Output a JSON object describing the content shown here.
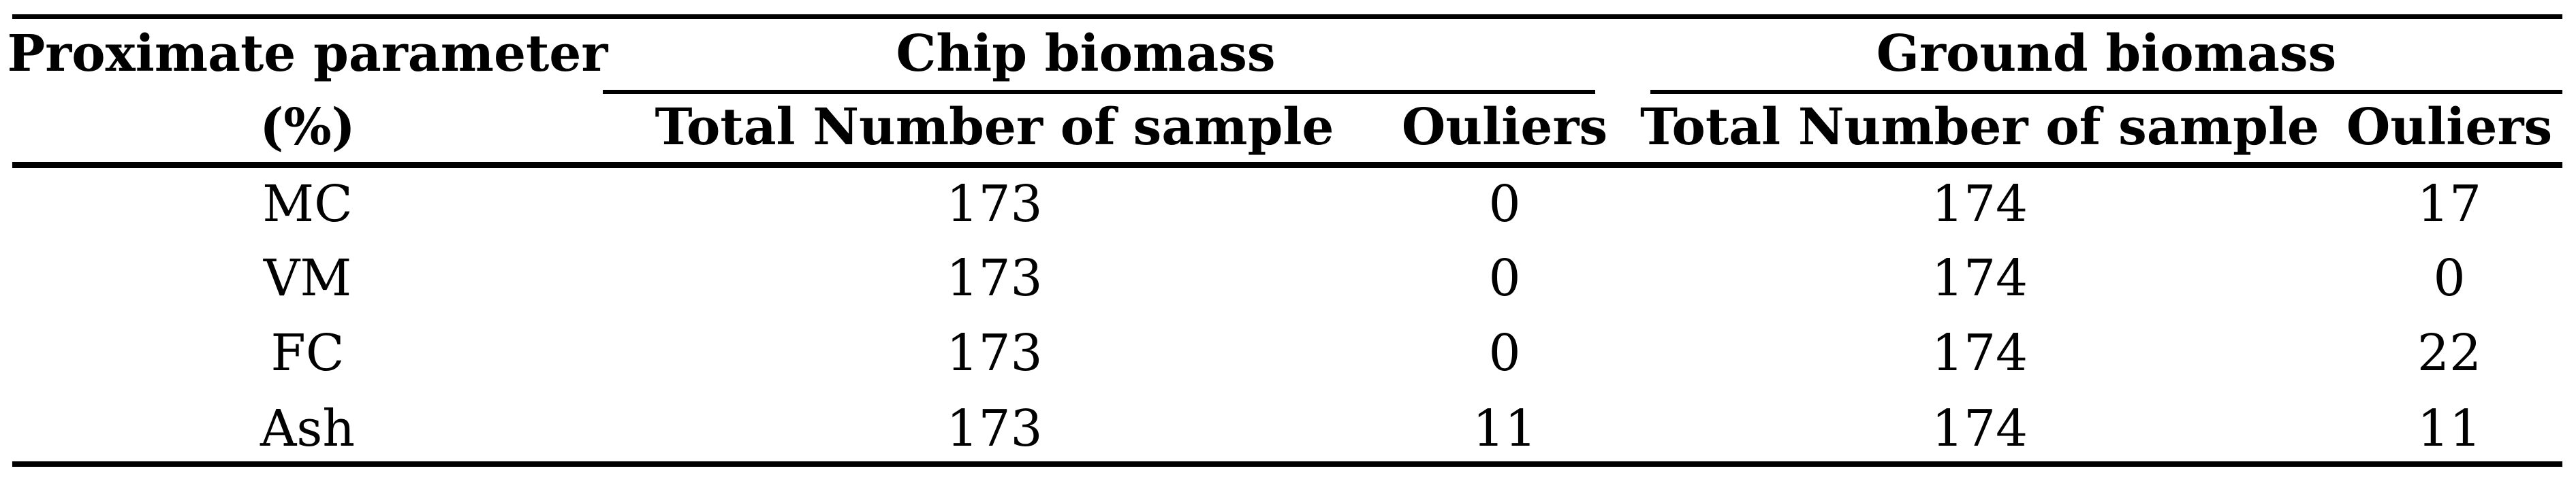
{
  "table": {
    "corner_header": {
      "line1": "Proximate parameter",
      "line2": "(%)"
    },
    "groups": {
      "chip": {
        "label": "Chip biomass",
        "sub_total": "Total Number of sample",
        "sub_outliers": "Ouliers"
      },
      "ground": {
        "label": "Ground biomass",
        "sub_total": "Total Number of sample",
        "sub_outliers": "Ouliers"
      }
    },
    "rows": [
      {
        "param": "MC",
        "chip_total": "173",
        "chip_outliers": "0",
        "ground_total": "174",
        "ground_outliers": "17"
      },
      {
        "param": "VM",
        "chip_total": "173",
        "chip_outliers": "0",
        "ground_total": "174",
        "ground_outliers": "0"
      },
      {
        "param": "FC",
        "chip_total": "173",
        "chip_outliers": "0",
        "ground_total": "174",
        "ground_outliers": "22"
      },
      {
        "param": "Ash",
        "chip_total": "173",
        "chip_outliers": "11",
        "ground_total": "174",
        "ground_outliers": "11"
      }
    ],
    "colors": {
      "text": "#000000",
      "rule": "#000000",
      "background": "#ffffff"
    }
  },
  "chart_data": {
    "type": "table",
    "title": "",
    "columns": [
      "Proximate parameter (%)",
      "Chip biomass - Total Number of sample",
      "Chip biomass - Ouliers",
      "Ground biomass - Total Number of sample",
      "Ground biomass - Ouliers"
    ],
    "rows": [
      [
        "MC",
        173,
        0,
        174,
        17
      ],
      [
        "VM",
        173,
        0,
        174,
        0
      ],
      [
        "FC",
        173,
        0,
        174,
        22
      ],
      [
        "Ash",
        173,
        11,
        174,
        11
      ]
    ]
  }
}
